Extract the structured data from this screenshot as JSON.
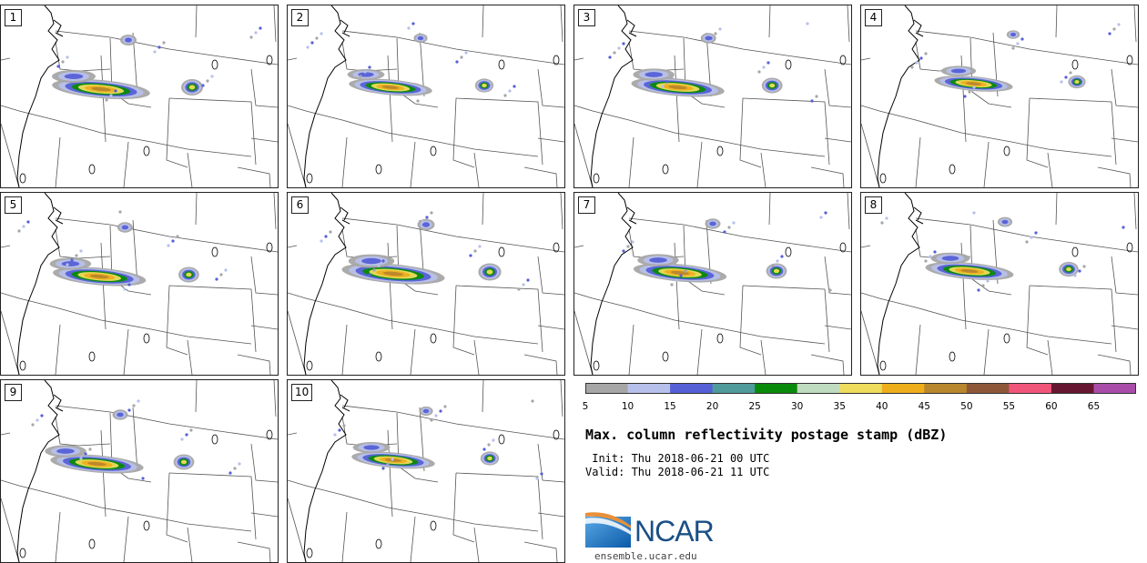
{
  "panels": [
    {
      "label": "1"
    },
    {
      "label": "2"
    },
    {
      "label": "3"
    },
    {
      "label": "4"
    },
    {
      "label": "5"
    },
    {
      "label": "6"
    },
    {
      "label": "7"
    },
    {
      "label": "8"
    },
    {
      "label": "9"
    },
    {
      "label": "10"
    }
  ],
  "legend": {
    "tick_labels": [
      "5",
      "10",
      "15",
      "20",
      "25",
      "30",
      "35",
      "40",
      "45",
      "50",
      "55",
      "60",
      "65"
    ],
    "bins": [
      5,
      10,
      15,
      20,
      25,
      30,
      35,
      40,
      45,
      50,
      55,
      60,
      65,
      70
    ],
    "colors": [
      "#a6a6a6",
      "#b7c0ea",
      "#5560d7",
      "#4f9a9a",
      "#0a8a0a",
      "#c0dcc0",
      "#eedc5c",
      "#eeae1c",
      "#b8862c",
      "#8e5838",
      "#f0567a",
      "#661630",
      "#a84ca8"
    ]
  },
  "title": "Max. column reflectivity postage stamp (dBZ)",
  "init_text": " Init: Thu 2018-06-21 00 UTC",
  "valid_text": "Valid: Thu 2018-06-21 11 UTC",
  "logo": {
    "text": "NCAR",
    "site": "ensemble.ucar.edu"
  },
  "map_colors": {
    "lines": "#555555",
    "coast": "#000000"
  }
}
